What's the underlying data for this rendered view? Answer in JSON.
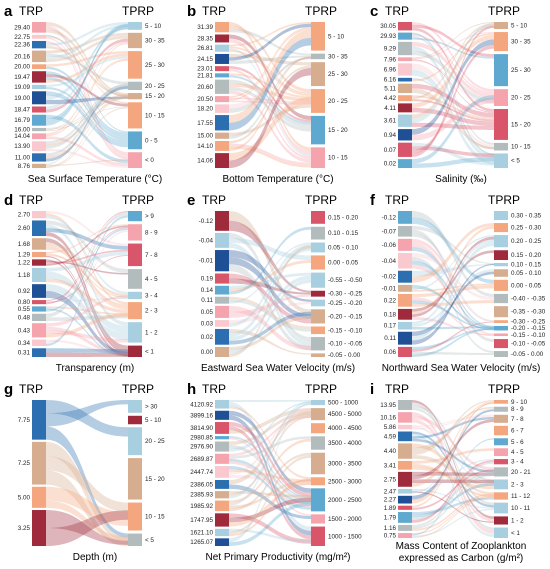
{
  "colors": {
    "red_dark": "#9e2a3c",
    "red": "#d9556a",
    "pink": "#f5a3ad",
    "pink_light": "#f9c9cf",
    "peach": "#f4a77e",
    "tan": "#d7ad90",
    "grey": "#b2bcbc",
    "blue_light": "#a7cfe0",
    "blue": "#5fa8cf",
    "blue_dark": "#2b6fb0",
    "navy": "#1f4f95"
  },
  "chart_data": [
    {
      "panel": "a",
      "type": "sankey",
      "left_header": "TRP",
      "right_header": "TPRP",
      "xlabel": "Sea Surface Temperature (°C)",
      "left_labels": [
        "29.40",
        "22.75",
        "22.36",
        "20.16",
        "20.00",
        "19.47",
        "19.09",
        "19.00",
        "18.47",
        "16.79",
        "16.00",
        "14.04",
        "13.90",
        "11.00",
        "8.76"
      ],
      "right_labels": [
        "5 - 10",
        "30 - 35",
        "25 - 30",
        "20 - 25",
        "15 - 20",
        "10 - 15",
        "0 - 5",
        "< 0"
      ]
    },
    {
      "panel": "b",
      "type": "sankey",
      "left_header": "TRP",
      "right_header": "TPRP",
      "xlabel": "Bottom Temperature (°C)",
      "left_labels": [
        "31.39",
        "28.35",
        "26.81",
        "24.15",
        "23.01",
        "21.81",
        "20.60",
        "20.50",
        "18.20",
        "17.55",
        "15.00",
        "14.10",
        "14.06"
      ],
      "right_labels": [
        "5 - 10",
        "30 - 35",
        "25 - 30",
        "20 - 25",
        "15 - 20",
        "10 - 15"
      ]
    },
    {
      "panel": "c",
      "type": "sankey",
      "left_header": "TRP",
      "right_header": "TPRP",
      "xlabel": "Salinity (‰)",
      "left_labels": [
        "30.05",
        "29.93",
        "9.29",
        "7.96",
        "6.96",
        "6.16",
        "5.11",
        "4.42",
        "4.11",
        "3.61",
        "0.94",
        "0.07",
        "0.02"
      ],
      "right_labels": [
        "5 - 10",
        "30 - 35",
        "25 - 30",
        "20 - 25",
        "15 - 20",
        "10 - 15",
        "< 5"
      ]
    },
    {
      "panel": "d",
      "type": "sankey",
      "left_header": "TRP",
      "right_header": "TPRP",
      "xlabel": "Transparency (m)",
      "left_labels": [
        "2.70",
        "2.60",
        "1.68",
        "1.29",
        "1.22",
        "1.18",
        "0.92",
        "0.80",
        "0.55",
        "0.48",
        "0.43",
        "0.34",
        "0.31"
      ],
      "right_labels": [
        "> 9",
        "8 - 9",
        "7 - 8",
        "4 - 5",
        "3 - 4",
        "2 - 3",
        "1 - 2",
        "< 1"
      ]
    },
    {
      "panel": "e",
      "type": "sankey",
      "left_header": "TRP",
      "right_header": "TPRP",
      "xlabel": "Eastward Sea Water Velocity (m/s)",
      "left_labels": [
        "-0.12",
        "-0.04",
        "-0.01",
        "0.19",
        "0.14",
        "0.11",
        "0.05",
        "0.03",
        "0.02",
        "0.00"
      ],
      "right_labels": [
        "0.15 - 0.20",
        "0.10 - 0.15",
        "0.05 - 0.10",
        "0.00 - 0.05",
        "-0.55 - -0.50",
        "-0.30 - -0.25",
        "-0.25 - -0.20",
        "-0.20 - -0.15",
        "-0.15 - -0.10",
        "-0.10 - -0.05",
        "-0.05 - 0.00"
      ]
    },
    {
      "panel": "f",
      "type": "sankey",
      "left_header": "TRP",
      "right_header": "TPRP",
      "xlabel": "Northward Sea Water Velocity (m/s)",
      "left_labels": [
        "-0.12",
        "-0.07",
        "-0.06",
        "-0.04",
        "-0.02",
        "-0.01",
        "0.22",
        "0.18",
        "0.17",
        "0.11",
        "0.06"
      ],
      "right_labels": [
        "0.30 - 0.35",
        "0.25 - 0.30",
        "0.20 - 0.25",
        "0.15 - 0.20",
        "0.10 - 0.15",
        "0.05 - 0.10",
        "0.00 - 0.05",
        "-0.40 - -0.35",
        "-0.35 - -0.30",
        "-0.30 - -0.25",
        "-0.20 - -0.15",
        "-0.15 - -0.10",
        "-0.10 - -0.05",
        "-0.05 - 0.00"
      ]
    },
    {
      "panel": "g",
      "type": "sankey",
      "left_header": "TRP",
      "right_header": "TPRP",
      "xlabel": "Depth (m)",
      "left_labels": [
        "7.75",
        "7.25",
        "5.00",
        "3.25"
      ],
      "right_labels": [
        "> 30",
        "5 - 10",
        "20 - 25",
        "15 - 20",
        "10 - 15",
        "< 5"
      ]
    },
    {
      "panel": "h",
      "type": "sankey",
      "left_header": "TRP",
      "right_header": "TPRP",
      "xlabel": "Net Primary Productivity (mg/m²)",
      "left_labels": [
        "4120.92",
        "3899.16",
        "3814.90",
        "2980.85",
        "2976.90",
        "2689.87",
        "2447.74",
        "2386.05",
        "2385.93",
        "1985.92",
        "1747.95",
        "1621.10",
        "1265.07"
      ],
      "right_labels": [
        "500 - 1000",
        "4500 - 5000",
        "4000 - 4500",
        "3500 - 4000",
        "3000 - 3500",
        "2500 - 3000",
        "2000 - 2500",
        "1500 - 2000",
        "1000 - 1500"
      ]
    },
    {
      "panel": "i",
      "type": "sankey",
      "left_header": "TRP",
      "right_header": "TPRP",
      "xlabel": "Mass Content of Zooplankton",
      "xlabel2": "expressed as Carbon (g/m²)",
      "left_labels": [
        "13.95",
        "10.16",
        "5.86",
        "4.59",
        "4.40",
        "3.41",
        "2.75",
        "2.47",
        "2.27",
        "1.89",
        "1.79",
        "1.16",
        "0.75"
      ],
      "right_labels": [
        "9 - 10",
        "8 - 9",
        "7 - 8",
        "6 - 7",
        "5 - 6",
        "4 - 5",
        "3 - 4",
        "20 - 21",
        "2 - 3",
        "11 - 12",
        "10 - 11",
        "1 - 2",
        "< 1"
      ]
    }
  ]
}
